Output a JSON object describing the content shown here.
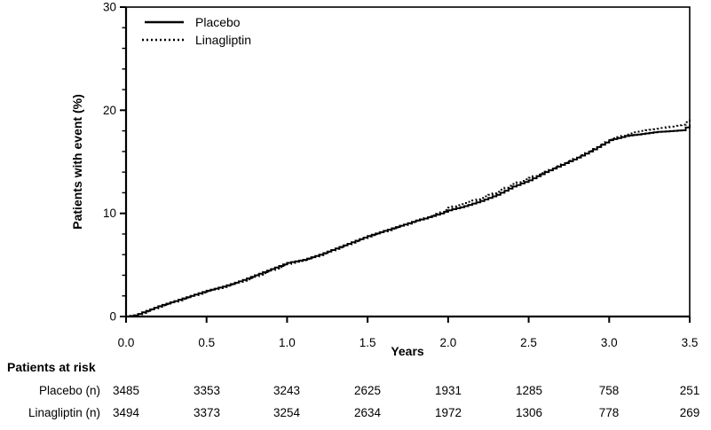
{
  "colors": {
    "line": "#000000",
    "background": "#ffffff"
  },
  "chart_data": {
    "type": "line",
    "subtype": "kaplan-meier-cumulative-incidence",
    "title": "",
    "xlabel": "Years",
    "ylabel": "Patients with event (%)",
    "xlim": [
      0,
      3.5
    ],
    "ylim": [
      0,
      30
    ],
    "x_tick_labels": [
      "0.0",
      "0.5",
      "1.0",
      "1.5",
      "2.0",
      "2.5",
      "3.0",
      "3.5"
    ],
    "x_tick_values": [
      0,
      0.5,
      1,
      1.5,
      2,
      2.5,
      3,
      3.5
    ],
    "y_major_tick_labels": [
      "0",
      "10",
      "20",
      "30"
    ],
    "y_major_tick_values": [
      0,
      10,
      20,
      30
    ],
    "y_minor_tick_values": [
      2,
      4,
      6,
      8,
      12,
      14,
      16,
      18,
      22,
      24,
      26,
      28
    ],
    "grid": "off",
    "frame": "box",
    "legend_position": "top-left-inside",
    "x": [
      0,
      0.05,
      0.1,
      0.15,
      0.2,
      0.25,
      0.3,
      0.35,
      0.4,
      0.45,
      0.5,
      0.55,
      0.6,
      0.65,
      0.7,
      0.75,
      0.8,
      0.85,
      0.9,
      0.95,
      1,
      1.05,
      1.1,
      1.15,
      1.2,
      1.25,
      1.3,
      1.35,
      1.4,
      1.45,
      1.5,
      1.55,
      1.6,
      1.65,
      1.7,
      1.75,
      1.8,
      1.85,
      1.9,
      1.95,
      2,
      2.05,
      2.1,
      2.15,
      2.2,
      2.25,
      2.3,
      2.35,
      2.4,
      2.45,
      2.5,
      2.55,
      2.6,
      2.65,
      2.7,
      2.75,
      2.8,
      2.85,
      2.9,
      2.95,
      3,
      3.05,
      3.1,
      3.15,
      3.2,
      3.25,
      3.3,
      3.35,
      3.4,
      3.45,
      3.5
    ],
    "series": [
      {
        "name": "Placebo",
        "line_style": "solid",
        "values": [
          0,
          0.1,
          0.4,
          0.7,
          1.0,
          1.25,
          1.5,
          1.75,
          2.0,
          2.25,
          2.5,
          2.7,
          2.9,
          3.15,
          3.4,
          3.7,
          4.0,
          4.3,
          4.6,
          4.9,
          5.2,
          5.35,
          5.5,
          5.75,
          6.0,
          6.3,
          6.6,
          6.9,
          7.2,
          7.5,
          7.8,
          8.05,
          8.3,
          8.55,
          8.8,
          9.05,
          9.3,
          9.5,
          9.75,
          10.0,
          10.3,
          10.5,
          10.7,
          10.95,
          11.2,
          11.5,
          11.8,
          12.2,
          12.6,
          12.9,
          13.2,
          13.6,
          14.0,
          14.35,
          14.7,
          15.05,
          15.4,
          15.8,
          16.2,
          16.65,
          17.1,
          17.3,
          17.5,
          17.6,
          17.7,
          17.8,
          17.9,
          17.95,
          18.0,
          18.05,
          18.6
        ]
      },
      {
        "name": "Linagliptin",
        "line_style": "dotted",
        "values": [
          0,
          0.1,
          0.35,
          0.65,
          0.95,
          1.2,
          1.45,
          1.7,
          1.95,
          2.2,
          2.45,
          2.65,
          2.85,
          3.1,
          3.35,
          3.6,
          3.9,
          4.2,
          4.5,
          4.8,
          5.1,
          5.3,
          5.45,
          5.7,
          5.95,
          6.25,
          6.55,
          6.85,
          7.15,
          7.45,
          7.75,
          8.0,
          8.25,
          8.5,
          8.75,
          9.0,
          9.3,
          9.55,
          9.8,
          10.1,
          10.55,
          10.8,
          11.0,
          11.25,
          11.5,
          11.8,
          12.1,
          12.5,
          12.85,
          13.15,
          13.45,
          13.75,
          14.05,
          14.4,
          14.75,
          15.1,
          15.45,
          15.85,
          16.25,
          16.7,
          17.15,
          17.4,
          17.65,
          17.85,
          18.0,
          18.1,
          18.2,
          18.35,
          18.5,
          18.6,
          19.1
        ]
      }
    ]
  },
  "risk_table": {
    "header": "Patients at risk",
    "time_points": [
      0,
      0.5,
      1,
      1.5,
      2,
      2.5,
      3,
      3.5
    ],
    "rows": [
      {
        "label": "Placebo (n)",
        "values": [
          "3485",
          "3353",
          "3243",
          "2625",
          "1931",
          "1285",
          "758",
          "251"
        ]
      },
      {
        "label": "Linagliptin (n)",
        "values": [
          "3494",
          "3373",
          "3254",
          "2634",
          "1972",
          "1306",
          "778",
          "269"
        ]
      }
    ]
  }
}
